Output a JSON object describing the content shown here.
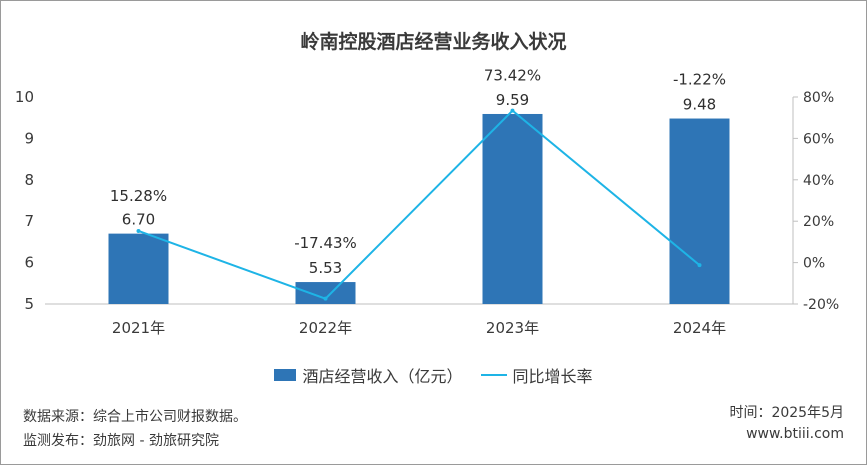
{
  "chart_data": {
    "type": "bar",
    "title": "岭南控股酒店经营业务收入状况",
    "categories": [
      "2021年",
      "2022年",
      "2023年",
      "2024年"
    ],
    "series": [
      {
        "name": "酒店经营收入（亿元）",
        "type": "bar",
        "axis": "left",
        "values": [
          6.7,
          5.53,
          9.59,
          9.48
        ],
        "labels": [
          "6.70",
          "5.53",
          "9.59",
          "9.48"
        ]
      },
      {
        "name": "同比增长率",
        "type": "line",
        "axis": "right",
        "values": [
          15.28,
          -17.43,
          73.42,
          -1.22
        ],
        "labels": [
          "15.28%",
          "-17.43%",
          "73.42%",
          "-1.22%"
        ]
      }
    ],
    "y_left": {
      "ylim": [
        5,
        10
      ],
      "ticks": [
        "5",
        "6",
        "7",
        "8",
        "9",
        "10"
      ]
    },
    "y_right": {
      "ylim": [
        -20,
        80
      ],
      "ticks": [
        "-20%",
        "0%",
        "20%",
        "40%",
        "60%",
        "80%"
      ]
    },
    "legend_position": "bottom",
    "colors": {
      "bar": "#2e75b6",
      "line": "#1eb4e6"
    }
  },
  "footer": {
    "source": "数据来源：综合上市公司财报数据。",
    "monitor": "监测发布：劲旅网 - 劲旅研究院",
    "time": "时间：2025年5月",
    "site": "www.btiii.com"
  }
}
